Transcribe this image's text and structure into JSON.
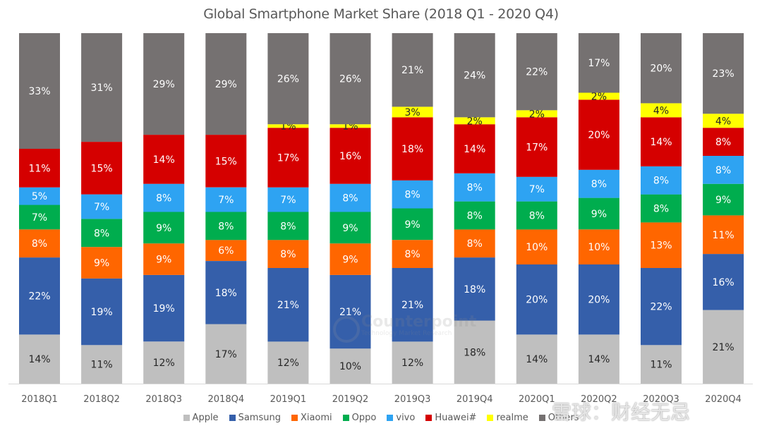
{
  "chart_data": {
    "type": "bar",
    "stacked": true,
    "title": "Global Smartphone Market Share (2018 Q1 - 2020 Q4)",
    "xlabel": "",
    "ylabel": "",
    "ylim": [
      0,
      100
    ],
    "grid": false,
    "legend_position": "bottom",
    "categories": [
      "2018Q1",
      "2018Q2",
      "2018Q3",
      "2018Q4",
      "2019Q1",
      "2019Q2",
      "2019Q3",
      "2019Q4",
      "2020Q1",
      "2020Q2",
      "2020Q3",
      "2020Q4"
    ],
    "series": [
      {
        "name": "Apple",
        "color": "#BFBFBF",
        "label_color": "#262626",
        "values": [
          14,
          11,
          12,
          17,
          12,
          10,
          12,
          18,
          14,
          14,
          11,
          21
        ]
      },
      {
        "name": "Samsung",
        "color": "#355FAA",
        "label_color": "#FFFFFF",
        "values": [
          22,
          19,
          19,
          18,
          21,
          21,
          21,
          18,
          20,
          20,
          22,
          16
        ]
      },
      {
        "name": "Xiaomi",
        "color": "#FF6600",
        "label_color": "#FFFFFF",
        "values": [
          8,
          9,
          9,
          6,
          8,
          9,
          8,
          8,
          10,
          10,
          13,
          11
        ]
      },
      {
        "name": "Oppo",
        "color": "#00AD4E",
        "label_color": "#FFFFFF",
        "values": [
          7,
          8,
          9,
          8,
          8,
          9,
          9,
          8,
          8,
          9,
          8,
          9
        ]
      },
      {
        "name": "vivo",
        "color": "#2EA3F2",
        "label_color": "#FFFFFF",
        "values": [
          5,
          7,
          8,
          7,
          7,
          8,
          8,
          8,
          7,
          8,
          8,
          8
        ]
      },
      {
        "name": "Huawei#",
        "color": "#D50000",
        "label_color": "#FFFFFF",
        "values": [
          11,
          15,
          14,
          15,
          17,
          16,
          18,
          14,
          17,
          20,
          14,
          8
        ]
      },
      {
        "name": "realme",
        "color": "#FFFF00",
        "label_color": "#262626",
        "values": [
          null,
          null,
          null,
          null,
          1,
          1,
          3,
          2,
          2,
          2,
          4,
          4
        ]
      },
      {
        "name": "Others",
        "color": "#757171",
        "label_color": "#FFFFFF",
        "values": [
          33,
          31,
          29,
          29,
          26,
          26,
          21,
          24,
          22,
          17,
          20,
          23
        ]
      }
    ]
  },
  "watermarks": {
    "counterpoint_name": "Counterpoint",
    "counterpoint_tagline": "Technology Market Research",
    "xueqiu": "雪球：财经无忌"
  }
}
